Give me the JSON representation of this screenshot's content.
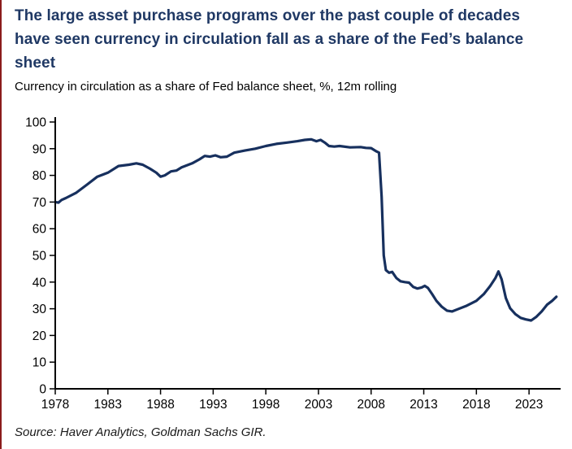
{
  "page": {
    "title": "The large asset purchase programs over the past couple of decades have seen currency in circulation fall as a share of the Fed’s balance sheet",
    "subtitle": "Currency in circulation as a share of Fed balance sheet, %, 12m rolling",
    "source": "Source: Haver Analytics, Goldman Sachs GIR."
  },
  "colors": {
    "title_text": "#1F3864",
    "line": "#17305E",
    "axis": "#000000",
    "tick_label": "#000000",
    "left_rule": "#8B1C1C"
  },
  "chart_data": {
    "type": "line",
    "title": "Currency in circulation as a share of Fed balance sheet, %, 12m rolling",
    "xlabel": "",
    "ylabel": "%",
    "ylim": [
      0,
      100
    ],
    "ytick_step": 10,
    "xlim": [
      1978,
      2026
    ],
    "xticks": [
      1978,
      1983,
      1988,
      1993,
      1998,
      2003,
      2008,
      2013,
      2018,
      2023
    ],
    "grid": false,
    "legend": "none",
    "series": [
      {
        "name": "Currency in circulation as share of Fed balance sheet (%)",
        "points": [
          [
            1978.0,
            70
          ],
          [
            1978.3,
            69.8
          ],
          [
            1978.6,
            70.8
          ],
          [
            1979,
            71.5
          ],
          [
            1980,
            73.5
          ],
          [
            1981,
            76.5
          ],
          [
            1982,
            79.5
          ],
          [
            1983,
            81
          ],
          [
            1984,
            83.5
          ],
          [
            1985,
            84
          ],
          [
            1985.7,
            84.5
          ],
          [
            1986.3,
            84
          ],
          [
            1987,
            82.5
          ],
          [
            1987.6,
            81
          ],
          [
            1988,
            79.5
          ],
          [
            1988.4,
            80
          ],
          [
            1989,
            81.5
          ],
          [
            1989.5,
            81.8
          ],
          [
            1990,
            83
          ],
          [
            1991,
            84.5
          ],
          [
            1991.7,
            86
          ],
          [
            1992.2,
            87.3
          ],
          [
            1992.7,
            87
          ],
          [
            1993.2,
            87.5
          ],
          [
            1993.7,
            86.8
          ],
          [
            1994.3,
            87
          ],
          [
            1995,
            88.5
          ],
          [
            1996,
            89.3
          ],
          [
            1997,
            90
          ],
          [
            1998,
            91
          ],
          [
            1999,
            91.8
          ],
          [
            2000,
            92.3
          ],
          [
            2001,
            92.8
          ],
          [
            2001.7,
            93.3
          ],
          [
            2002.3,
            93.5
          ],
          [
            2002.8,
            92.8
          ],
          [
            2003.2,
            93.3
          ],
          [
            2003.6,
            92.3
          ],
          [
            2004,
            91
          ],
          [
            2004.5,
            90.8
          ],
          [
            2005,
            91
          ],
          [
            2006,
            90.5
          ],
          [
            2007,
            90.6
          ],
          [
            2007.5,
            90.3
          ],
          [
            2008,
            90.2
          ],
          [
            2008.5,
            89
          ],
          [
            2008.75,
            88.5
          ],
          [
            2009,
            72
          ],
          [
            2009.2,
            50
          ],
          [
            2009.4,
            44.5
          ],
          [
            2009.7,
            43.5
          ],
          [
            2010,
            43.8
          ],
          [
            2010.4,
            41.5
          ],
          [
            2010.8,
            40.3
          ],
          [
            2011.2,
            40
          ],
          [
            2011.6,
            39.8
          ],
          [
            2012,
            38.2
          ],
          [
            2012.4,
            37.6
          ],
          [
            2012.8,
            38
          ],
          [
            2013.1,
            38.6
          ],
          [
            2013.4,
            37.8
          ],
          [
            2013.8,
            35.5
          ],
          [
            2014.2,
            33
          ],
          [
            2014.7,
            30.8
          ],
          [
            2015.2,
            29.3
          ],
          [
            2015.7,
            29
          ],
          [
            2016.2,
            29.8
          ],
          [
            2017,
            31
          ],
          [
            2018,
            33
          ],
          [
            2018.7,
            35.5
          ],
          [
            2019.3,
            38.5
          ],
          [
            2019.8,
            41.5
          ],
          [
            2020.1,
            44
          ],
          [
            2020.4,
            41
          ],
          [
            2020.8,
            34
          ],
          [
            2021.2,
            30.2
          ],
          [
            2021.7,
            28
          ],
          [
            2022.2,
            26.6
          ],
          [
            2022.7,
            26
          ],
          [
            2023.2,
            25.6
          ],
          [
            2023.7,
            27
          ],
          [
            2024.2,
            29
          ],
          [
            2024.7,
            31.5
          ],
          [
            2025.2,
            33
          ],
          [
            2025.6,
            34.5
          ]
        ]
      }
    ]
  }
}
